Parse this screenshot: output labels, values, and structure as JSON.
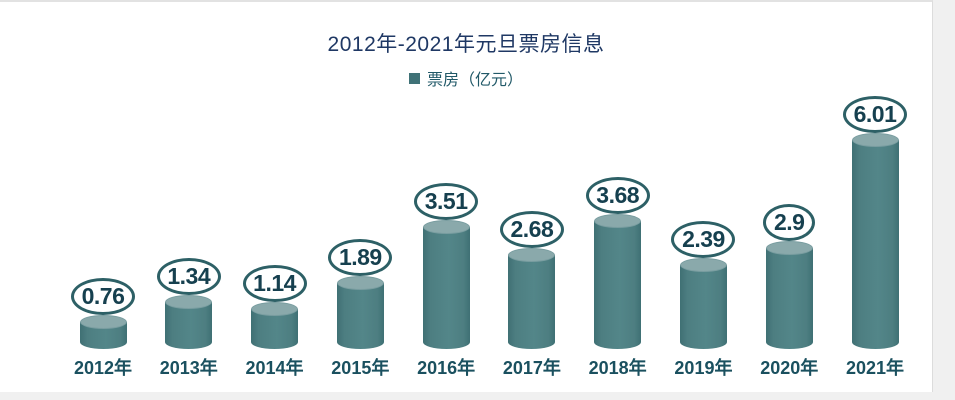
{
  "window": {
    "background": "#f0f0f0",
    "chart_background": "#ffffff",
    "frame_border": "#dcdcdc"
  },
  "header": {
    "title": "2012年-2021年元旦票房信息",
    "title_color": "#1f3864"
  },
  "legend": {
    "label": "票房（亿元）",
    "marker_color": "#3f7277",
    "text_color": "#215968",
    "position": "top"
  },
  "colors": {
    "bar_body": "#4d7e81",
    "bar_body_edge": "#3f7074",
    "bar_top": "#8aa9ab",
    "badge_stroke": "#2d6066",
    "badge_text": "#16404f",
    "axis_label": "#1a505f"
  },
  "chart_data": {
    "type": "bar",
    "subtype": "cylinder",
    "title": "2012年-2021年元旦票房信息",
    "series_name": "票房（亿元）",
    "categories": [
      "2012年",
      "2013年",
      "2014年",
      "2015年",
      "2016年",
      "2017年",
      "2018年",
      "2019年",
      "2020年",
      "2021年"
    ],
    "values": [
      0.76,
      1.34,
      1.14,
      1.89,
      3.51,
      2.68,
      3.68,
      2.39,
      2.9,
      6.01
    ],
    "labels": [
      "0.76",
      "1.34",
      "1.14",
      "1.89",
      "3.51",
      "2.68",
      "3.68",
      "2.39",
      "2.9",
      "6.01"
    ],
    "xlabel": "",
    "ylabel": "票房（亿元）",
    "ylim": [
      0,
      6.2
    ],
    "grid": false,
    "data_labels": "ellipse-badges above bars",
    "legend_position": "top-center"
  }
}
